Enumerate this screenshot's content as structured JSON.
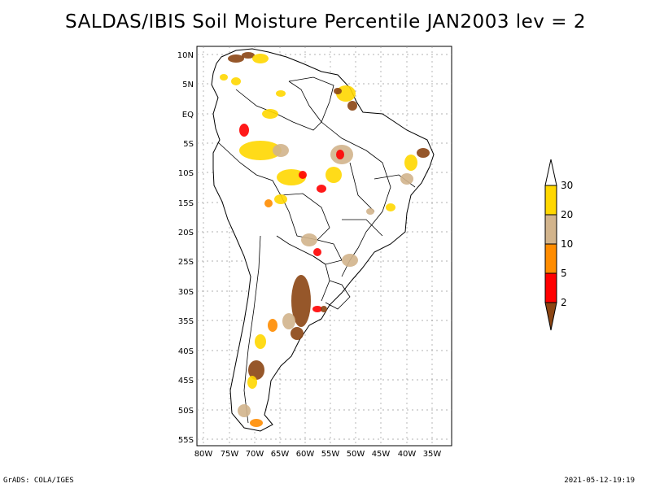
{
  "title": "SALDAS/IBIS Soil Moisture Percentile JAN2003 lev = 2",
  "map": {
    "lat_ticks": [
      "10N",
      "5N",
      "EQ",
      "5S",
      "10S",
      "15S",
      "20S",
      "25S",
      "30S",
      "35S",
      "40S",
      "45S",
      "50S",
      "55S"
    ],
    "lon_ticks": [
      "80W",
      "75W",
      "70W",
      "65W",
      "60W",
      "55W",
      "50W",
      "45W",
      "40W",
      "35W"
    ],
    "grid": true,
    "region": "South America"
  },
  "legend": {
    "labels": [
      "2",
      "5",
      "10",
      "20",
      "30"
    ],
    "colors": [
      "#8b4513",
      "#ff0000",
      "#ff8c00",
      "#d2b48c",
      "#ffd700",
      "#ffffff"
    ]
  },
  "footer": {
    "left": "GrADS: COLA/IGES",
    "right": "2021-05-12-19:19"
  }
}
